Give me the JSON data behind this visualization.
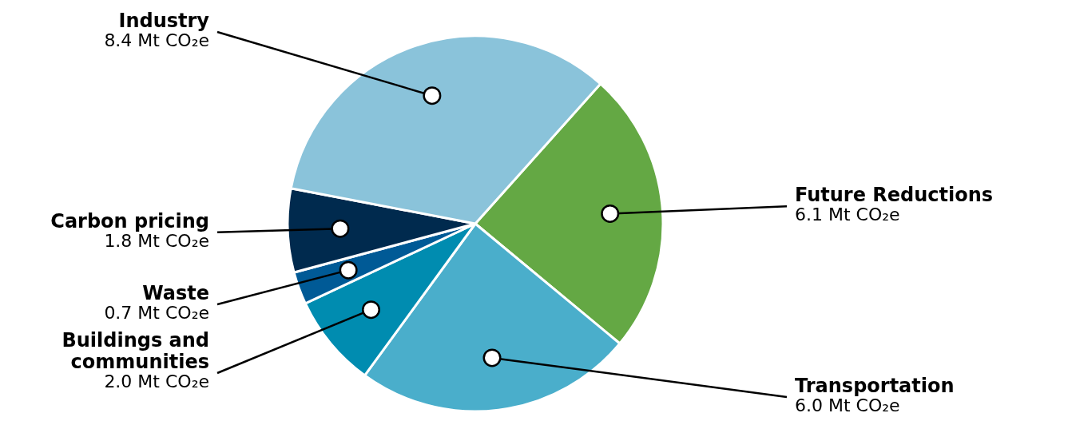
{
  "chart_data": {
    "type": "pie",
    "categories": [
      "Future Reductions",
      "Transportation",
      "Buildings and communities",
      "Waste",
      "Carbon pricing",
      "Industry"
    ],
    "values": [
      6.1,
      6.0,
      2.0,
      0.7,
      1.8,
      8.4
    ],
    "colors": [
      "#64a844",
      "#4aaecb",
      "#008cb0",
      "#005a96",
      "#002a4e",
      "#8ac3da"
    ],
    "value_labels": [
      "6.1 Mt CO₂e",
      "6.0 Mt CO₂e",
      "2.0 Mt CO₂e",
      "0.7 Mt CO₂e",
      "1.8 Mt CO₂e",
      "8.4 Mt CO₂e"
    ],
    "legend": false
  }
}
